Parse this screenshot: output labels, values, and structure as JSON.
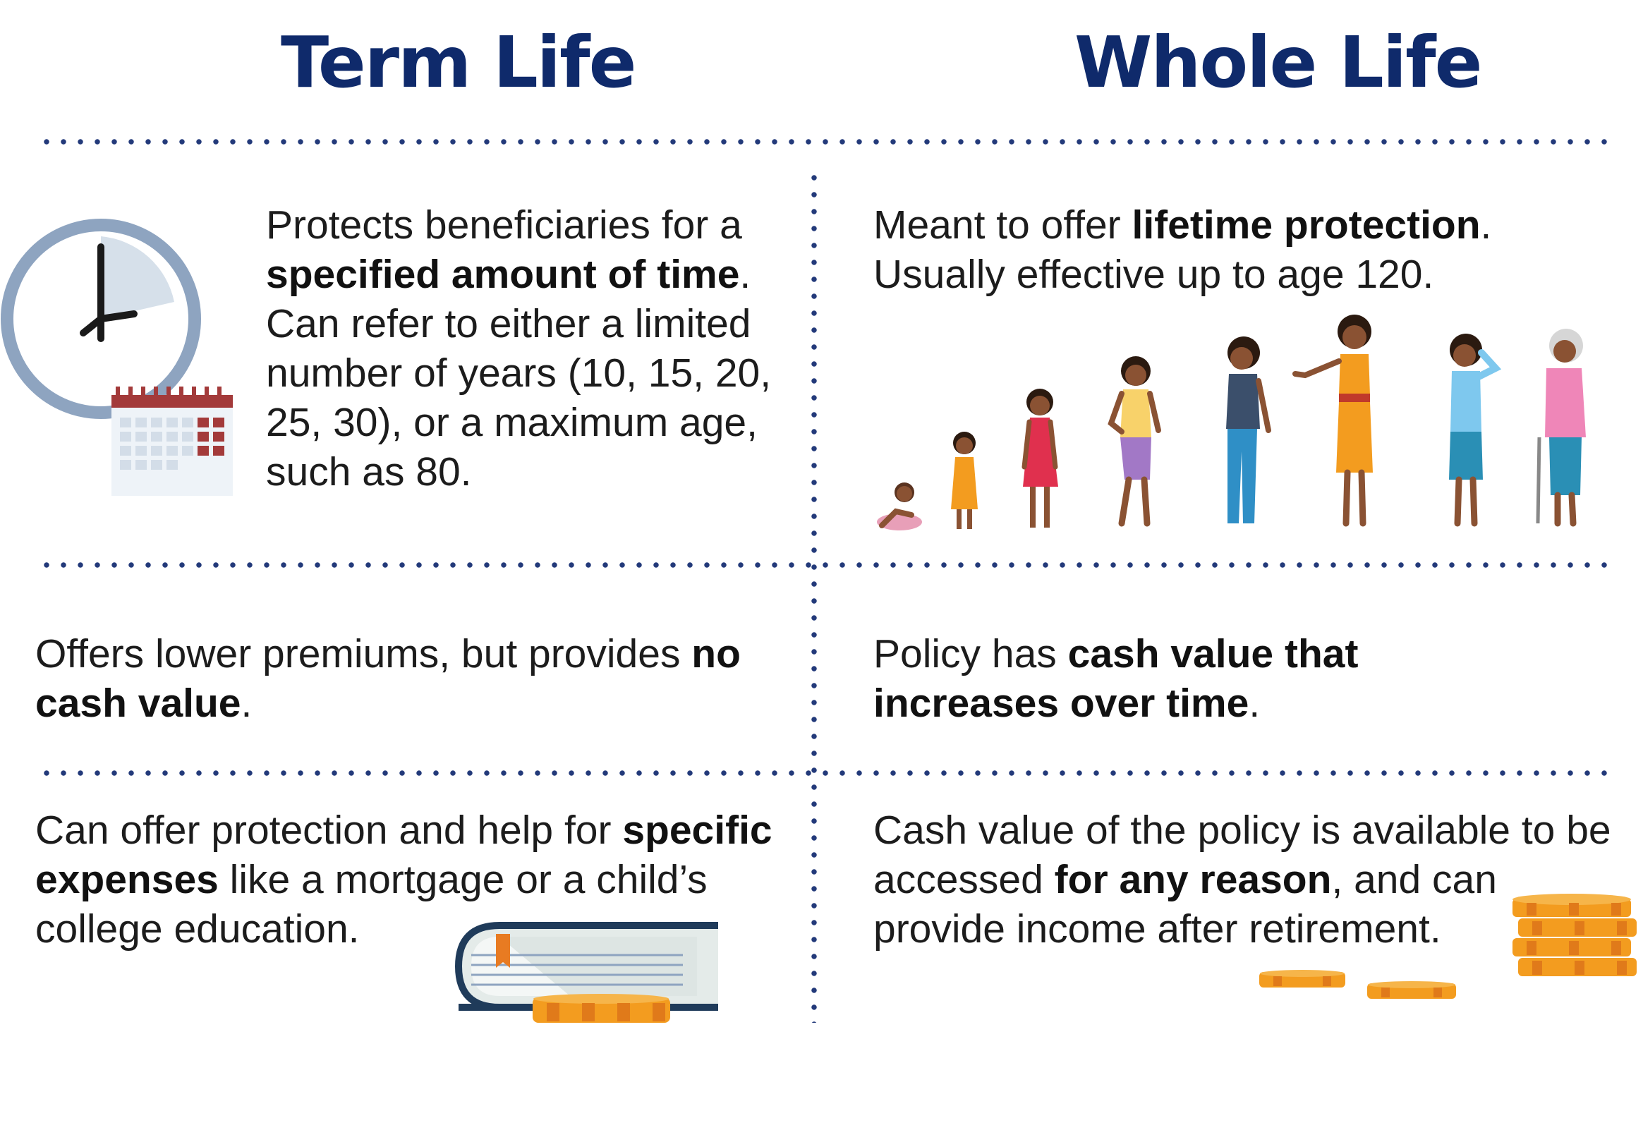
{
  "headings": {
    "term": "Term Life",
    "whole": "Whole Life"
  },
  "term": {
    "row1": {
      "p1": "Protects beneficiaries for a ",
      "b1": "specified amount of time",
      "p2": ". Can refer to either a limited number of years (10, 15, 20, 25, 30), or a maximum age, such as 80."
    },
    "row2": {
      "p1": "Offers lower premiums, but provides ",
      "b1": "no cash value",
      "p2": "."
    },
    "row3": {
      "p1": "Can offer protection and help for ",
      "b1": "specific expenses",
      "p2": " like a mortgage or a child’s college education."
    }
  },
  "whole": {
    "row1": {
      "p1": "Meant to offer ",
      "b1": "lifetime protection",
      "p2": ". Usually effective up to age 120."
    },
    "row2": {
      "p1": "Policy has ",
      "b1": "cash value that increases over time",
      "p2": "."
    },
    "row3": {
      "p1": "Cash value of the policy is available to be accessed ",
      "b1": "for any reason",
      "p2": ", and can provide income after retirement."
    }
  },
  "icons": {
    "clock": "clock-icon",
    "calendar": "calendar-icon",
    "life_stages": "life-stages-illustration",
    "book": "book-icon",
    "coins": "coins-icon"
  },
  "colors": {
    "heading": "#0f2a6b",
    "dots": "#233a7a",
    "clock": "#8ea4c0",
    "calendar_red": "#a33a3a",
    "coin": "#f39c1f"
  }
}
